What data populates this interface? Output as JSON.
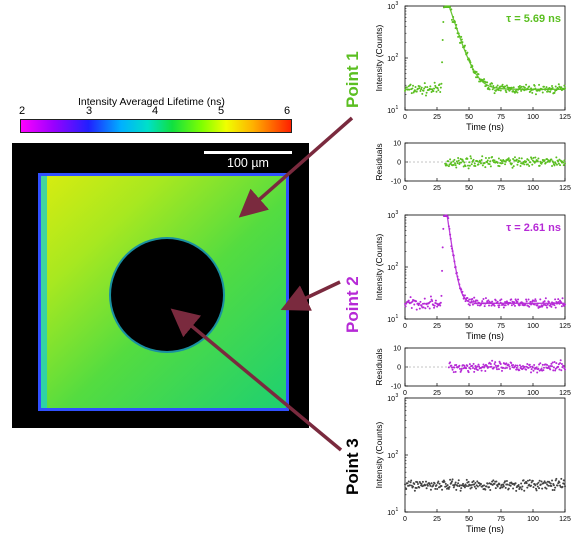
{
  "colorbar": {
    "title": "Intensity Averaged Lifetime (ns)",
    "ticks": [
      "2",
      "3",
      "4",
      "5",
      "6"
    ],
    "range": [
      2,
      6
    ]
  },
  "image": {
    "scalebar_label": "100 µm"
  },
  "points": [
    {
      "label": "Point 1",
      "color": "#5bbf21"
    },
    {
      "label": "Point 2",
      "color": "#b62ad6"
    },
    {
      "label": "Point 3",
      "color": "#000000"
    }
  ],
  "arrow_color": "#7a2a3e",
  "chart_data": [
    {
      "type": "scatter",
      "title": "",
      "annotation": "τ = 5.69 ns",
      "xlabel": "Time (ns)",
      "ylabel": "Intensity (Counts)",
      "xlim": [
        0,
        125
      ],
      "ylim_log": [
        10,
        1000
      ],
      "log_y": true,
      "x_ticks": [
        "0",
        "25",
        "50",
        "75",
        "100",
        "125"
      ],
      "y_ticks": [
        "10^1",
        "10^2",
        "10^3"
      ],
      "color": "#5bbf21",
      "decay": {
        "baseline": 25,
        "peak_time": 31,
        "peak": 1800,
        "tau": 5.69,
        "rise_start": 28
      }
    },
    {
      "type": "scatter",
      "title": "",
      "xlabel": "",
      "ylabel": "Residuals",
      "xlim": [
        0,
        125
      ],
      "ylim": [
        -10,
        10
      ],
      "x_ticks": [
        "0",
        "25",
        "50",
        "75",
        "100",
        "125"
      ],
      "y_ticks": [
        "-10",
        "0",
        "10"
      ],
      "color": "#5bbf21",
      "residuals": {
        "start": 31,
        "end": 125,
        "spread": 2
      }
    },
    {
      "type": "scatter",
      "title": "",
      "annotation": "τ = 2.61 ns",
      "xlabel": "Time (ns)",
      "ylabel": "Intensity (Counts)",
      "xlim": [
        0,
        125
      ],
      "ylim_log": [
        10,
        1000
      ],
      "log_y": true,
      "x_ticks": [
        "0",
        "25",
        "50",
        "75",
        "100",
        "125"
      ],
      "y_ticks": [
        "10^1",
        "10^2",
        "10^3"
      ],
      "color": "#b62ad6",
      "decay": {
        "baseline": 20,
        "peak_time": 31,
        "peak": 2000,
        "tau": 2.61,
        "rise_start": 28
      }
    },
    {
      "type": "scatter",
      "title": "",
      "xlabel": "",
      "ylabel": "Residuals",
      "xlim": [
        0,
        125
      ],
      "ylim": [
        -10,
        10
      ],
      "x_ticks": [
        "0",
        "25",
        "50",
        "75",
        "100",
        "125"
      ],
      "y_ticks": [
        "-10",
        "0",
        "10"
      ],
      "color": "#b62ad6",
      "residuals": {
        "start": 34,
        "end": 125,
        "spread": 2
      }
    },
    {
      "type": "scatter",
      "title": "",
      "xlabel": "Time (ns)",
      "ylabel": "Intensity (Counts)",
      "xlim": [
        0,
        125
      ],
      "ylim_log": [
        10,
        1000
      ],
      "log_y": true,
      "x_ticks": [
        "0",
        "25",
        "50",
        "75",
        "100",
        "125"
      ],
      "y_ticks": [
        "10^1",
        "10^2",
        "10^3"
      ],
      "color": "#444444",
      "flat": {
        "level": 30
      }
    }
  ]
}
